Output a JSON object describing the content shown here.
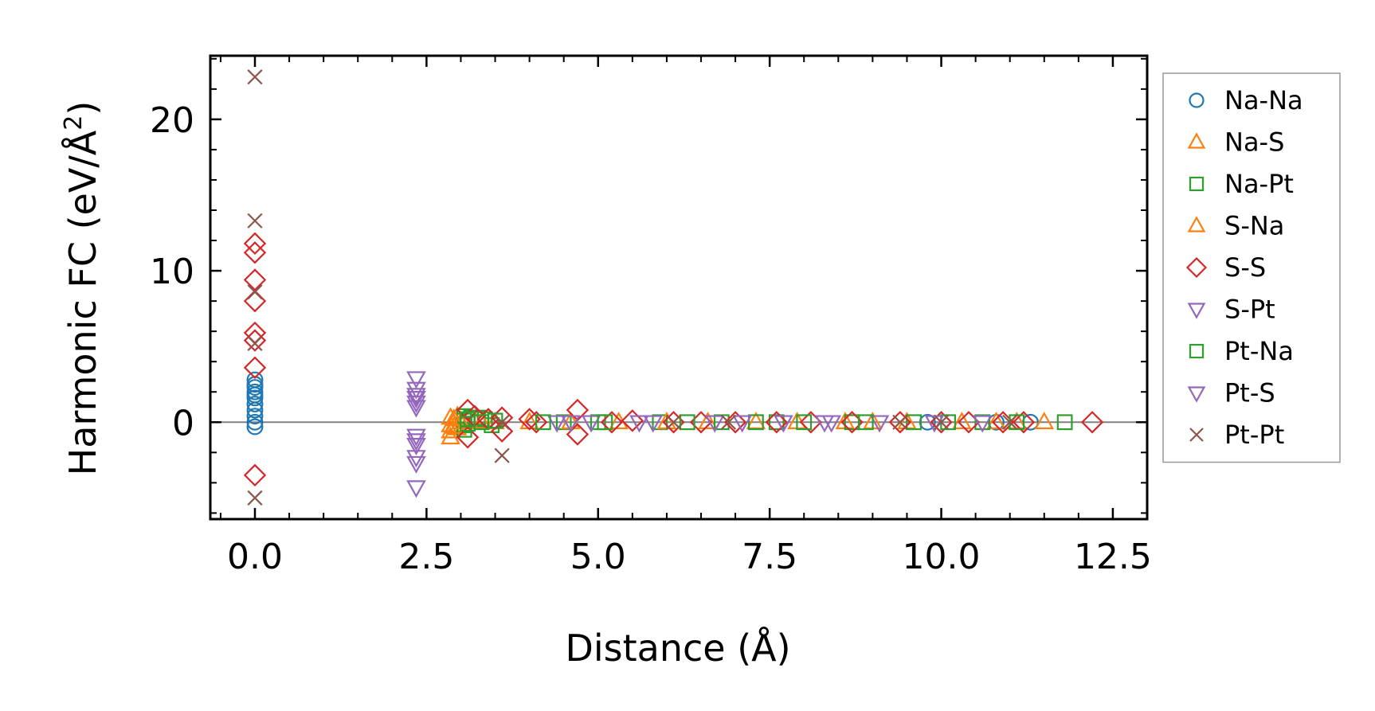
{
  "chart_data": {
    "type": "scatter",
    "title": "",
    "xlabel": "Distance (Å)",
    "ylabel_main": "Harmonic FC (eV/Å",
    "ylabel_sup": "2",
    "ylabel_close": ")",
    "xlim": [
      -0.65,
      13.0
    ],
    "ylim": [
      -6.4,
      24.2
    ],
    "xticks": [
      0.0,
      2.5,
      5.0,
      7.5,
      10.0,
      12.5
    ],
    "xtick_labels": [
      "0.0",
      "2.5",
      "5.0",
      "7.5",
      "10.0",
      "12.5"
    ],
    "yticks": [
      0,
      10,
      20
    ],
    "ytick_labels": [
      "0",
      "10",
      "20"
    ],
    "x_minor_step": 0.5,
    "y_minor_step": 2,
    "zero_line": true,
    "grid": false,
    "legend_position": "outside-right",
    "series": [
      {
        "name": "Na-Na",
        "marker": "circle",
        "color": "#1f77b4",
        "points": [
          [
            0,
            2.8
          ],
          [
            0,
            2.3
          ],
          [
            0,
            2.0
          ],
          [
            0,
            1.6
          ],
          [
            0,
            1.2
          ],
          [
            0,
            0.8
          ],
          [
            0,
            0.4
          ],
          [
            0,
            0.0
          ],
          [
            0,
            -0.3
          ],
          [
            0,
            1.8
          ],
          [
            0,
            2.5
          ],
          [
            11.3,
            0.0
          ],
          [
            10.8,
            0.0
          ],
          [
            9.8,
            0.0
          ]
        ]
      },
      {
        "name": "Na-S",
        "marker": "triangle-up",
        "color": "#ff7f0e",
        "points": [
          [
            2.85,
            0.3
          ],
          [
            2.85,
            -0.2
          ],
          [
            2.85,
            -0.6
          ],
          [
            2.85,
            -1.0
          ],
          [
            2.95,
            0.4
          ],
          [
            2.95,
            -0.4
          ],
          [
            3.2,
            0.1
          ],
          [
            3.5,
            0.0
          ],
          [
            4.0,
            0.0
          ],
          [
            5.3,
            0.0
          ],
          [
            6.6,
            0.0
          ],
          [
            7.3,
            0.0
          ],
          [
            8.6,
            0.0
          ],
          [
            9.5,
            0.0
          ],
          [
            10.8,
            0.0
          ],
          [
            11.5,
            0.0
          ]
        ]
      },
      {
        "name": "Na-Pt",
        "marker": "square",
        "color": "#2ca02c",
        "points": [
          [
            3.05,
            0.4
          ],
          [
            3.05,
            0.1
          ],
          [
            3.05,
            -0.2
          ],
          [
            3.05,
            -0.5
          ],
          [
            3.15,
            0.3
          ],
          [
            3.25,
            0.3
          ],
          [
            3.35,
            0.2
          ],
          [
            3.45,
            -0.2
          ],
          [
            4.5,
            0.0
          ],
          [
            5.0,
            0.0
          ],
          [
            5.9,
            0.0
          ],
          [
            6.8,
            0.0
          ],
          [
            7.6,
            0.0
          ],
          [
            8.7,
            0.0
          ],
          [
            9.6,
            0.0
          ],
          [
            10.6,
            0.0
          ],
          [
            11.8,
            0.0
          ]
        ]
      },
      {
        "name": "S-Na",
        "marker": "triangle-up",
        "color": "#ff7f0e",
        "points": [
          [
            2.9,
            0.2
          ],
          [
            2.9,
            -0.3
          ],
          [
            3.0,
            0.0
          ],
          [
            3.3,
            0.0
          ],
          [
            4.6,
            0.0
          ],
          [
            6.0,
            0.0
          ],
          [
            7.9,
            0.0
          ],
          [
            9.0,
            0.0
          ],
          [
            10.3,
            0.0
          ],
          [
            11.1,
            0.0
          ]
        ]
      },
      {
        "name": "S-S",
        "marker": "diamond",
        "color": "#d62728",
        "points": [
          [
            0,
            11.8
          ],
          [
            0,
            11.2
          ],
          [
            0,
            9.4
          ],
          [
            0,
            8.0
          ],
          [
            0,
            5.9
          ],
          [
            0,
            5.4
          ],
          [
            0,
            3.6
          ],
          [
            0,
            -3.5
          ],
          [
            3.1,
            0.8
          ],
          [
            3.1,
            -1.0
          ],
          [
            3.2,
            0.4
          ],
          [
            3.4,
            0.2
          ],
          [
            3.6,
            0.3
          ],
          [
            3.6,
            -0.6
          ],
          [
            4.0,
            0.2
          ],
          [
            4.1,
            0.0
          ],
          [
            4.7,
            0.8
          ],
          [
            4.7,
            -0.8
          ],
          [
            5.2,
            0.0
          ],
          [
            5.5,
            0.1
          ],
          [
            6.1,
            0.0
          ],
          [
            6.5,
            0.0
          ],
          [
            7.0,
            0.0
          ],
          [
            7.6,
            0.0
          ],
          [
            8.1,
            0.0
          ],
          [
            8.7,
            0.0
          ],
          [
            9.4,
            0.0
          ],
          [
            10.0,
            0.0
          ],
          [
            10.4,
            0.0
          ],
          [
            10.9,
            0.0
          ],
          [
            11.2,
            0.0
          ],
          [
            12.2,
            0.0
          ]
        ]
      },
      {
        "name": "S-Pt",
        "marker": "triangle-down",
        "color": "#9467bd",
        "points": [
          [
            2.35,
            2.9
          ],
          [
            2.35,
            2.2
          ],
          [
            2.35,
            1.6
          ],
          [
            2.35,
            1.0
          ],
          [
            2.35,
            -0.9
          ],
          [
            2.35,
            -1.5
          ],
          [
            2.35,
            -2.7
          ],
          [
            2.35,
            -4.3
          ],
          [
            4.4,
            0.0
          ],
          [
            4.9,
            0.0
          ],
          [
            5.6,
            0.0
          ],
          [
            6.7,
            0.0
          ],
          [
            7.7,
            0.0
          ],
          [
            8.4,
            0.0
          ],
          [
            9.1,
            0.0
          ],
          [
            10.6,
            0.0
          ]
        ]
      },
      {
        "name": "Pt-Na",
        "marker": "square",
        "color": "#2ca02c",
        "points": [
          [
            3.1,
            0.2
          ],
          [
            3.1,
            -0.1
          ],
          [
            3.3,
            0.0
          ],
          [
            3.5,
            0.1
          ],
          [
            4.2,
            0.0
          ],
          [
            5.1,
            0.0
          ],
          [
            6.3,
            0.0
          ],
          [
            7.3,
            0.0
          ],
          [
            8.0,
            0.0
          ],
          [
            8.9,
            0.0
          ],
          [
            10.1,
            0.0
          ],
          [
            11.1,
            0.0
          ]
        ]
      },
      {
        "name": "Pt-S",
        "marker": "triangle-down",
        "color": "#9467bd",
        "points": [
          [
            2.35,
            1.8
          ],
          [
            2.35,
            1.3
          ],
          [
            2.35,
            -1.2
          ],
          [
            2.35,
            -2.3
          ],
          [
            4.6,
            0.0
          ],
          [
            5.8,
            0.0
          ],
          [
            7.1,
            0.0
          ],
          [
            8.3,
            0.0
          ],
          [
            9.9,
            0.0
          ]
        ]
      },
      {
        "name": "Pt-Pt",
        "marker": "x",
        "color": "#8c564b",
        "points": [
          [
            0,
            22.8
          ],
          [
            0,
            13.3
          ],
          [
            0,
            8.6
          ],
          [
            0,
            5.2
          ],
          [
            0,
            -5.0
          ],
          [
            3.6,
            -2.2
          ],
          [
            3.6,
            0.0
          ],
          [
            6.1,
            0.0
          ],
          [
            6.9,
            0.0
          ],
          [
            9.4,
            0.0
          ],
          [
            10.0,
            0.0
          ],
          [
            11.0,
            0.0
          ]
        ]
      }
    ]
  }
}
